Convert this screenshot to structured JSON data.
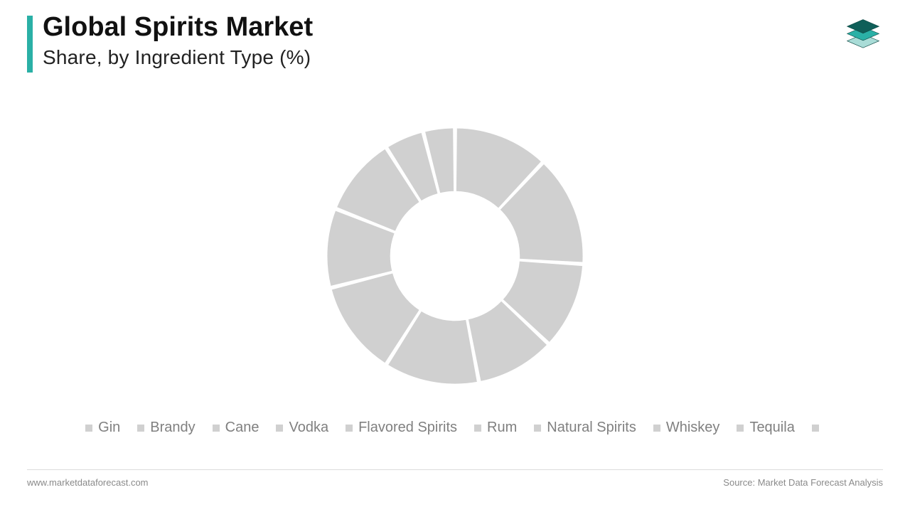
{
  "header": {
    "title": "Global Spirits Market",
    "subtitle": "Share, by Ingredient Type (%)",
    "accent_color": "#2ab0a6"
  },
  "logo": {
    "top_fill": "#0f5f59",
    "mid_fill": "#2ab0a6",
    "bot_fill": "#a9dcd7",
    "stroke": "#0d4a45"
  },
  "chart": {
    "type": "donut",
    "outer_radius": 190,
    "inner_radius": 95,
    "gap_deg": 1.2,
    "slice_fill": "#d0d0d0",
    "slice_stroke": "#ffffff",
    "slice_stroke_width": 2,
    "background": "#ffffff",
    "segments": [
      {
        "label": "Gin",
        "value": 12
      },
      {
        "label": "Brandy",
        "value": 14
      },
      {
        "label": "Cane",
        "value": 11
      },
      {
        "label": "Vodka",
        "value": 10
      },
      {
        "label": "Flavored Spirits",
        "value": 12
      },
      {
        "label": "Rum",
        "value": 12
      },
      {
        "label": "Natural Spirits",
        "value": 10
      },
      {
        "label": "Whiskey",
        "value": 10
      },
      {
        "label": "Tequila",
        "value": 5
      },
      {
        "label": "",
        "value": 4
      }
    ]
  },
  "legend": {
    "swatch_color": "#d0d0d0",
    "label_color": "#808080",
    "items": [
      "Gin",
      "Brandy",
      "Cane",
      "Vodka",
      "Flavored Spirits",
      "Rum",
      "Natural Spirits",
      "Whiskey",
      "Tequila",
      ""
    ]
  },
  "footer": {
    "left": "www.marketdataforecast.com",
    "right": "Source: Market Data Forecast Analysis",
    "divider_color": "#dcdcdc",
    "text_color": "#8a8a8a"
  }
}
